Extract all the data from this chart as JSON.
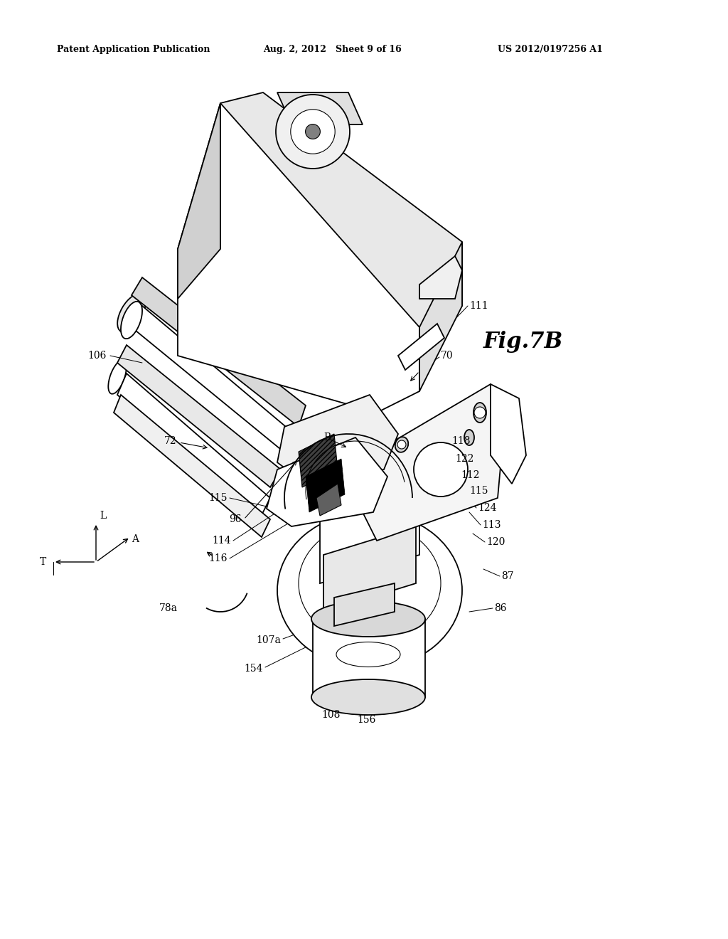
{
  "header_left": "Patent Application Publication",
  "header_center": "Aug. 2, 2012   Sheet 9 of 16",
  "header_right": "US 2012/0197256 A1",
  "fig_label": "Fig.7B",
  "background_color": "#ffffff",
  "line_color": "#000000",
  "lw_main": 1.3,
  "lw_thin": 0.8,
  "label_fontsize": 10,
  "header_fontsize": 9,
  "fig_label_fontsize": 22
}
